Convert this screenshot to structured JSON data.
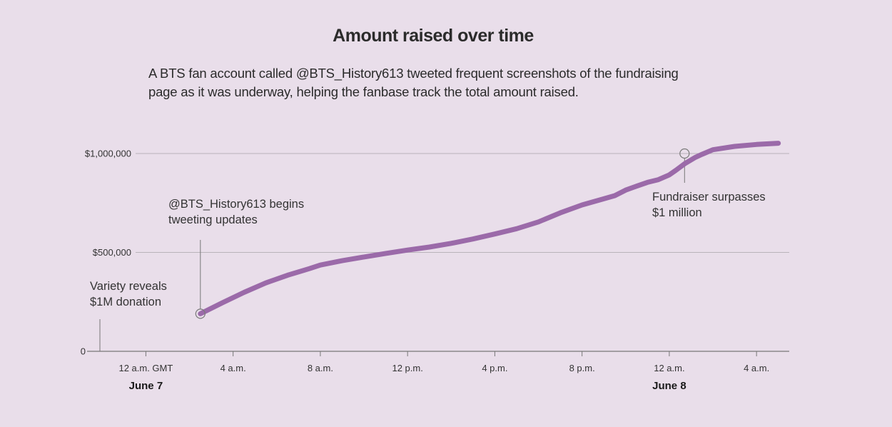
{
  "colors": {
    "background": "#e9deea",
    "line": "#9b6aa9",
    "grid": "#b9b3ba",
    "axis": "#777777"
  },
  "chart_data": {
    "type": "line",
    "title": "Amount raised over time",
    "subtitle": "A BTS fan account called @BTS_History613 tweeted frequent screenshots of the fundraising page as it was underway, helping the fanbase track the total amount raised.",
    "xlabel": "",
    "ylabel": "",
    "x_unit": "hours after 12 a.m. GMT June 7",
    "xlim": [
      -2.5,
      29.5
    ],
    "ylim": [
      0,
      1000000
    ],
    "grid": true,
    "y_ticks": [
      {
        "value": 0,
        "label": "0"
      },
      {
        "value": 500000,
        "label": "$500,000"
      },
      {
        "value": 1000000,
        "label": "$1,000,000"
      }
    ],
    "x_ticks": [
      {
        "value": 0,
        "label": "12 a.m. GMT"
      },
      {
        "value": 4,
        "label": "4 a.m."
      },
      {
        "value": 8,
        "label": "8 a.m."
      },
      {
        "value": 12,
        "label": "12 p.m."
      },
      {
        "value": 16,
        "label": "4 p.m."
      },
      {
        "value": 20,
        "label": "8 p.m."
      },
      {
        "value": 24,
        "label": "12 a.m."
      },
      {
        "value": 28,
        "label": "4 a.m."
      }
    ],
    "date_labels": [
      {
        "value": 0,
        "label": "June 7"
      },
      {
        "value": 24,
        "label": "June 8"
      }
    ],
    "series": [
      {
        "x": [
          2.5,
          3.5,
          4.5,
          5.5,
          6.5,
          7.5,
          8.0,
          9.0,
          10.0,
          11.0,
          12.0,
          13.0,
          14.0,
          15.0,
          16.0,
          17.0,
          18.0,
          19.0,
          20.0,
          21.0,
          21.5,
          22.0,
          22.5,
          23.0,
          23.5,
          24.0,
          24.3,
          24.7,
          25.2,
          25.5,
          26.0,
          27.0,
          28.0,
          29.0
        ],
        "values": [
          190000,
          245000,
          298000,
          346000,
          385000,
          418000,
          436000,
          458000,
          477000,
          495000,
          512000,
          527000,
          546000,
          568000,
          593000,
          620000,
          654000,
          700000,
          740000,
          771000,
          787000,
          815000,
          835000,
          854000,
          868000,
          892000,
          915000,
          948000,
          981000,
          996000,
          1019000,
          1036000,
          1046000,
          1052000
        ]
      }
    ],
    "annotations": [
      {
        "id": "variety",
        "x": -2,
        "y": 180000,
        "lines": [
          "Variety reveals",
          "$1M donation"
        ],
        "marker": false
      },
      {
        "id": "tweets",
        "x": 2.5,
        "y": 190000,
        "lines": [
          "@BTS_History613 begins",
          "tweeting updates"
        ],
        "marker": true
      },
      {
        "id": "million",
        "x": 24.7,
        "y": 1000000,
        "lines": [
          "Fundraiser surpasses",
          "$1 million"
        ],
        "marker": true
      }
    ]
  }
}
